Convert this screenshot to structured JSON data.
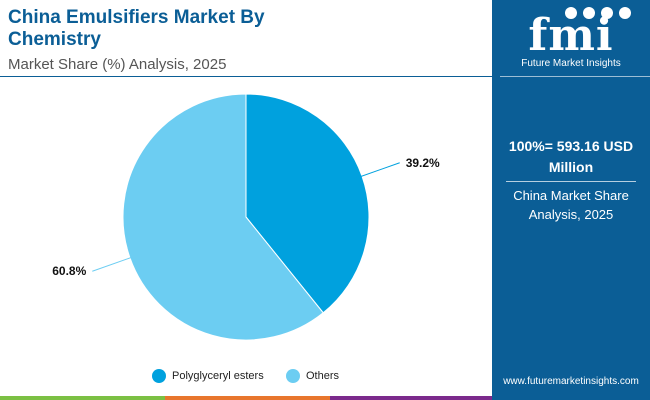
{
  "header": {
    "title": "China Emulsifiers Market By Chemistry",
    "subtitle": "Market Share (%) Analysis, 2025"
  },
  "brand": {
    "logo": "fmi",
    "caption": "Future Market Insights",
    "website": "www.futuremarketinsights.com"
  },
  "sidebar": {
    "total": "100%= 593.16 USD Million",
    "description": "China Market Share Analysis, 2025"
  },
  "colors": {
    "brand": "#0b5e96",
    "bottom_bar": [
      "#7bc043",
      "#e8762d",
      "#7b2a8c",
      "#0b5e96"
    ]
  },
  "chart_data": {
    "type": "pie",
    "start_angle": "12 o'clock",
    "direction": "clockwise",
    "slices": [
      {
        "name": "Polyglyceryl esters",
        "value": 39.2,
        "label": "39.2%",
        "color": "#00a1de"
      },
      {
        "name": "Others",
        "value": 60.8,
        "label": "60.8%",
        "color": "#6ccdf2"
      }
    ],
    "legend_placement": "bottom"
  }
}
